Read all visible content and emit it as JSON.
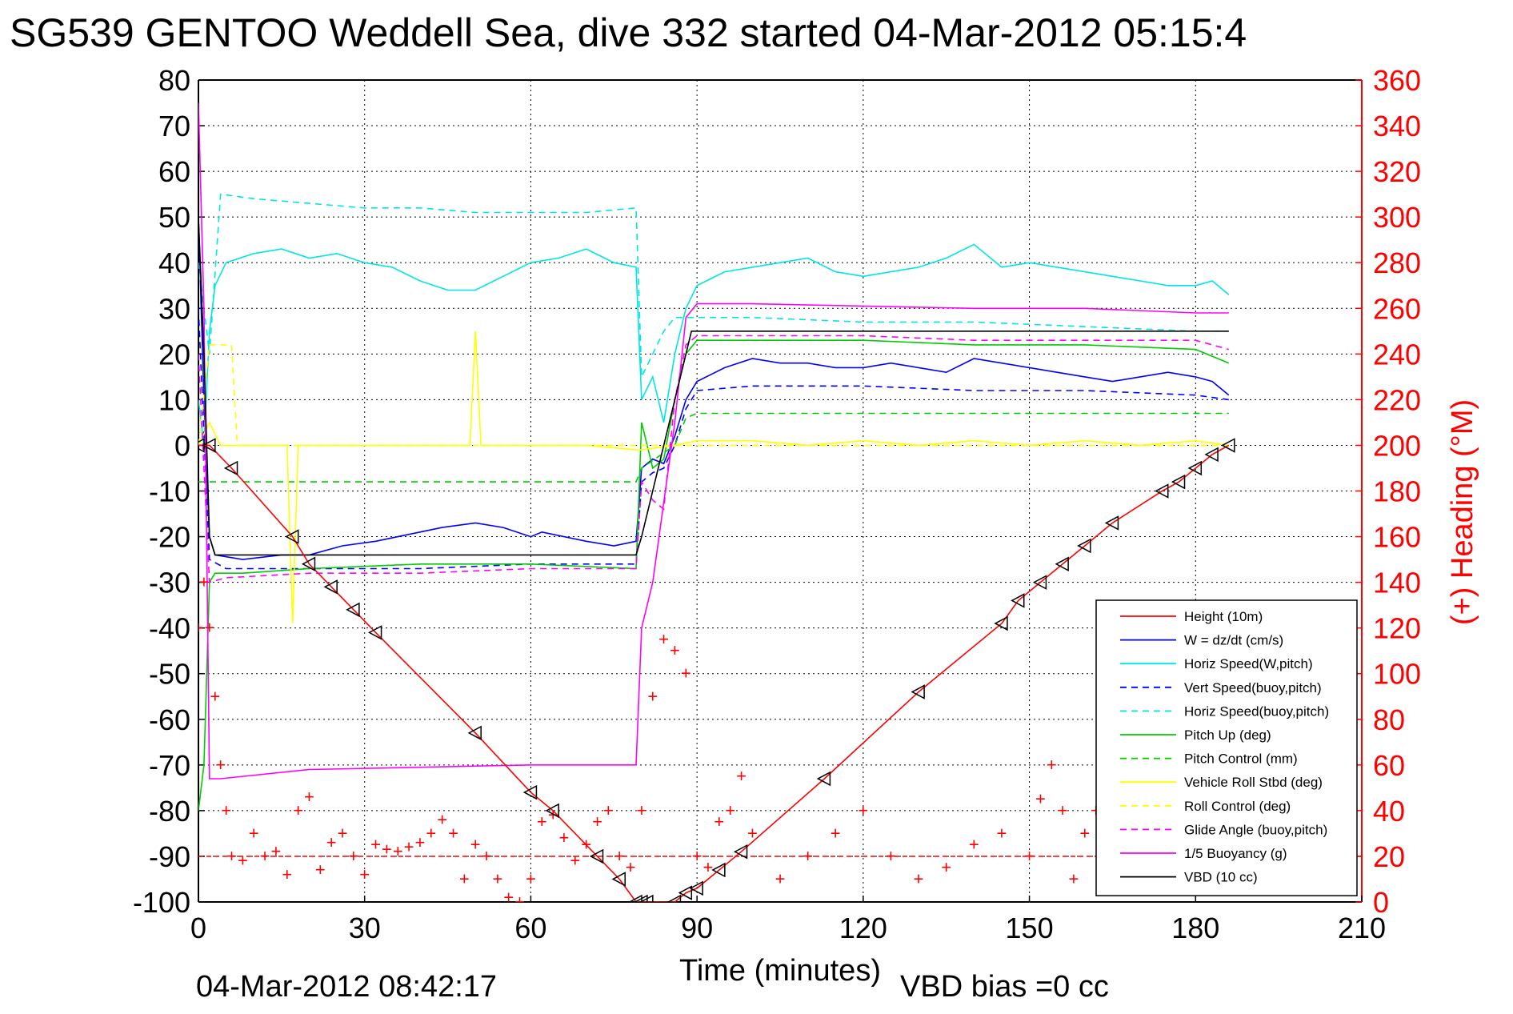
{
  "chart_data": {
    "type": "line",
    "title": "SG539 GENTOO Weddell Sea, dive 332 started 04-Mar-2012 05:15:4",
    "xlabel": "Time (minutes)",
    "ylabel": "",
    "y2label": "(+) Heading (°M)",
    "footer_date": "04-Mar-2012 08:42:17",
    "footer_bias": "VBD bias =0 cc",
    "xlim": [
      0,
      210
    ],
    "ylim": [
      -100,
      80
    ],
    "y2lim": [
      0,
      360
    ],
    "x_ticks": [
      0,
      30,
      60,
      90,
      120,
      150,
      180,
      210
    ],
    "y_ticks": [
      80,
      70,
      60,
      50,
      40,
      30,
      20,
      10,
      0,
      -10,
      -20,
      -30,
      -40,
      -50,
      -60,
      -70,
      -80,
      -90,
      -100
    ],
    "y2_ticks": [
      360,
      340,
      320,
      300,
      280,
      260,
      240,
      220,
      200,
      180,
      160,
      140,
      120,
      100,
      80,
      60,
      40,
      20,
      0
    ],
    "grid": true,
    "legend_position": "lower-right",
    "axis_color_left": "#000000",
    "axis_color_right": "#ff0000",
    "series": [
      {
        "name": "Height (10m)",
        "color": "#ff0000",
        "style": "solid",
        "x": [
          0,
          2,
          6,
          17,
          20,
          24,
          28,
          32,
          50,
          60,
          64,
          72,
          76,
          79,
          80,
          81,
          86,
          88,
          90,
          94,
          98,
          113,
          130,
          145,
          148,
          152,
          156,
          160,
          165,
          174,
          177,
          180,
          183,
          186
        ],
        "y": [
          0,
          0,
          -5,
          -20,
          -26,
          -31,
          -36,
          -41,
          -63,
          -76,
          -80,
          -90,
          -95,
          -100,
          -100,
          -100,
          -100,
          -98,
          -97,
          -93,
          -89,
          -73,
          -54,
          -39,
          -34,
          -30,
          -26,
          -22,
          -17,
          -10,
          -8,
          -5,
          -2,
          0
        ]
      },
      {
        "name": "W = dz/dt (cm/s)",
        "color": "#0000ff",
        "style": "solid",
        "x": [
          0,
          1,
          2,
          3,
          8,
          15,
          20,
          26,
          32,
          40,
          44,
          50,
          55,
          60,
          62,
          70,
          75,
          79,
          80,
          82,
          84,
          86,
          88,
          90,
          95,
          100,
          105,
          110,
          115,
          120,
          125,
          130,
          135,
          140,
          145,
          150,
          155,
          160,
          165,
          170,
          175,
          180,
          183,
          186
        ],
        "y": [
          50,
          10,
          -20,
          -24,
          -25,
          -24,
          -24,
          -22,
          -21,
          -19,
          -18,
          -17,
          -18,
          -20,
          -19,
          -21,
          -22,
          -21,
          -5,
          -3,
          -4,
          2,
          10,
          14,
          17,
          19,
          18,
          18,
          17,
          17,
          18,
          17,
          16,
          19,
          18,
          17,
          16,
          15,
          14,
          15,
          16,
          15,
          14,
          11
        ]
      },
      {
        "name": "Horiz Speed(W,pitch)",
        "color": "#00e5e5",
        "style": "solid",
        "x": [
          0,
          1,
          2,
          3,
          5,
          10,
          15,
          20,
          25,
          30,
          35,
          40,
          45,
          50,
          55,
          60,
          65,
          70,
          75,
          79,
          80,
          82,
          84,
          86,
          88,
          90,
          95,
          100,
          105,
          110,
          115,
          120,
          125,
          130,
          135,
          140,
          145,
          150,
          155,
          160,
          165,
          170,
          175,
          180,
          183,
          186
        ],
        "y": [
          10,
          0,
          25,
          35,
          40,
          42,
          43,
          41,
          42,
          40,
          39,
          36,
          34,
          34,
          37,
          40,
          41,
          43,
          40,
          39,
          10,
          15,
          5,
          20,
          30,
          35,
          38,
          39,
          40,
          41,
          38,
          37,
          38,
          39,
          41,
          44,
          39,
          40,
          39,
          38,
          37,
          36,
          35,
          35,
          36,
          33
        ]
      },
      {
        "name": "Vert Speed(buoy,pitch)",
        "color": "#0000ff",
        "style": "dashed",
        "x": [
          0,
          2,
          5,
          20,
          40,
          60,
          79,
          80,
          82,
          84,
          86,
          88,
          90,
          100,
          120,
          140,
          160,
          180,
          186
        ],
        "y": [
          30,
          -25,
          -27,
          -27,
          -27,
          -26,
          -26,
          -8,
          -6,
          -5,
          0,
          8,
          12,
          13,
          13,
          12,
          12,
          11,
          10
        ]
      },
      {
        "name": "Horiz Speed(buoy,pitch)",
        "color": "#00e5e5",
        "style": "dashed",
        "x": [
          0,
          2,
          4,
          10,
          20,
          30,
          40,
          50,
          60,
          70,
          79,
          80,
          84,
          86,
          88,
          90,
          100,
          120,
          140,
          160,
          180,
          186
        ],
        "y": [
          40,
          20,
          55,
          54,
          53,
          52,
          52,
          51,
          51,
          51,
          52,
          15,
          25,
          28,
          28,
          28,
          28,
          27,
          27,
          26,
          25,
          25
        ]
      },
      {
        "name": "Pitch Up (deg)",
        "color": "#00cc00",
        "style": "solid",
        "x": [
          0,
          1,
          2,
          3,
          8,
          20,
          40,
          60,
          79,
          80,
          82,
          84,
          86,
          88,
          90,
          100,
          120,
          140,
          160,
          180,
          186
        ],
        "y": [
          -80,
          -70,
          -30,
          -28,
          -28,
          -27,
          -26,
          -26,
          -27,
          5,
          -5,
          -3,
          10,
          20,
          23,
          23,
          23,
          22,
          22,
          21,
          18
        ]
      },
      {
        "name": "Pitch Control (mm)",
        "color": "#00cc00",
        "style": "dashed",
        "x": [
          0,
          2,
          4,
          20,
          40,
          60,
          79,
          80,
          86,
          88,
          90,
          100,
          120,
          140,
          160,
          180,
          186
        ],
        "y": [
          -8,
          -8,
          -8,
          -8,
          -8,
          -8,
          -8,
          -5,
          0,
          6,
          7,
          7,
          7,
          7,
          7,
          7,
          7
        ]
      },
      {
        "name": "Vehicle Roll Stbd (deg)",
        "color": "#ffff00",
        "style": "solid",
        "x": [
          0,
          2,
          4,
          10,
          16,
          17,
          18,
          20,
          30,
          40,
          49,
          50,
          51,
          60,
          70,
          79,
          80,
          86,
          90,
          100,
          110,
          120,
          130,
          140,
          150,
          160,
          170,
          180,
          186
        ],
        "y": [
          0,
          5,
          0,
          0,
          0,
          -39,
          0,
          0,
          0,
          0,
          0,
          25,
          0,
          0,
          0,
          -1,
          -1,
          0,
          1,
          1,
          0,
          1,
          0,
          1,
          0,
          1,
          0,
          1,
          0
        ]
      },
      {
        "name": "Roll Control (deg)",
        "color": "#ffff00",
        "style": "dashed",
        "x": [
          0,
          2,
          4,
          6,
          7,
          20,
          40,
          60,
          80,
          90,
          120,
          150,
          180,
          186
        ],
        "y": [
          0,
          22,
          22,
          22,
          0,
          0,
          0,
          0,
          0,
          0,
          0,
          0,
          0,
          0
        ]
      },
      {
        "name": "Glide Angle (buoy,pitch)",
        "color": "#ff00ff",
        "style": "dashed",
        "x": [
          0,
          2,
          5,
          20,
          40,
          60,
          79,
          80,
          82,
          84,
          86,
          88,
          90,
          100,
          120,
          140,
          160,
          180,
          186
        ],
        "y": [
          20,
          -30,
          -29,
          -28,
          -28,
          -27,
          -27,
          -8,
          -12,
          -14,
          10,
          22,
          24,
          24,
          24,
          23,
          23,
          23,
          21
        ]
      },
      {
        "name": "1/5 Buoyancy (g)",
        "color": "#ff00ff",
        "style": "solid",
        "x": [
          0,
          1,
          2,
          4,
          20,
          40,
          60,
          79,
          80,
          82,
          86,
          88,
          90,
          100,
          120,
          140,
          160,
          180,
          186
        ],
        "y": [
          75,
          30,
          -73,
          -73,
          -71,
          -70.5,
          -70,
          -70,
          -40,
          -30,
          5,
          28,
          31,
          31,
          30.5,
          30,
          30,
          29,
          29
        ]
      },
      {
        "name": "VBD (10 cc)",
        "color": "#000000",
        "style": "solid",
        "x": [
          0,
          1,
          2,
          3,
          40,
          79,
          80,
          88,
          89,
          120,
          186
        ],
        "y": [
          50,
          20,
          -20,
          -24,
          -24,
          -24,
          -20,
          20,
          25,
          25,
          25
        ]
      }
    ],
    "heading": {
      "name": "(+) Heading",
      "color": "#ff0000",
      "marker": "+",
      "x": [
        0,
        1,
        2,
        3,
        4,
        5,
        6,
        8,
        10,
        12,
        14,
        16,
        18,
        20,
        22,
        24,
        26,
        28,
        30,
        32,
        34,
        36,
        38,
        40,
        42,
        44,
        46,
        48,
        50,
        52,
        54,
        56,
        58,
        60,
        62,
        64,
        66,
        68,
        70,
        72,
        74,
        76,
        78,
        80,
        82,
        84,
        86,
        88,
        90,
        92,
        94,
        96,
        98,
        100,
        105,
        110,
        115,
        120,
        125,
        130,
        135,
        140,
        145,
        150,
        152,
        154,
        156,
        158,
        160,
        162,
        164,
        166,
        168,
        170,
        172,
        174,
        176,
        178,
        180,
        182,
        184,
        186
      ],
      "y": [
        120,
        140,
        120,
        90,
        60,
        40,
        20,
        18,
        30,
        20,
        22,
        12,
        40,
        46,
        14,
        26,
        30,
        20,
        12,
        25,
        23,
        22,
        24,
        26,
        30,
        36,
        30,
        10,
        25,
        20,
        10,
        2,
        0,
        10,
        35,
        38,
        28,
        18,
        25,
        35,
        40,
        20,
        15,
        40,
        90,
        115,
        110,
        100,
        20,
        15,
        35,
        40,
        55,
        30,
        10,
        20,
        30,
        40,
        20,
        10,
        15,
        25,
        30,
        20,
        45,
        60,
        40,
        10,
        30,
        40,
        20,
        30,
        25,
        35,
        40,
        50,
        40,
        30,
        20,
        40,
        50,
        30
      ]
    },
    "heading_ref_y2": 20
  }
}
